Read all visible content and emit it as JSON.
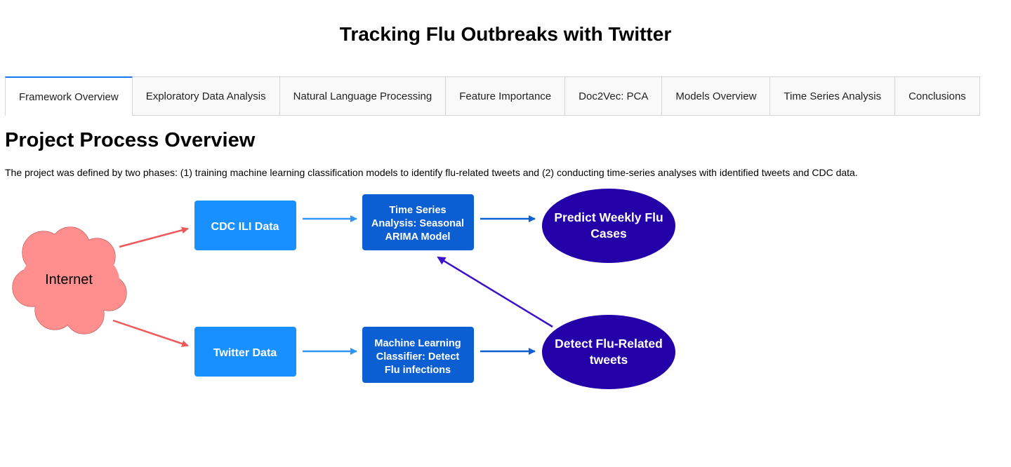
{
  "app": {
    "title": "Tracking Flu Outbreaks with Twitter"
  },
  "tabs": [
    {
      "label": "Framework Overview",
      "active": true
    },
    {
      "label": "Exploratory Data Analysis",
      "active": false
    },
    {
      "label": "Natural Language Processing",
      "active": false
    },
    {
      "label": "Feature Importance",
      "active": false
    },
    {
      "label": "Doc2Vec: PCA",
      "active": false
    },
    {
      "label": "Models Overview",
      "active": false
    },
    {
      "label": "Time Series Analysis",
      "active": false
    },
    {
      "label": "Conclusions",
      "active": false
    }
  ],
  "main": {
    "heading": "Project Process Overview",
    "intro": "The project was defined by two phases: (1) training machine learning classification models to identify flu-related tweets and (2) conducting time-series analyses with identified tweets and CDC data."
  },
  "diagram": {
    "nodes": {
      "internet": {
        "lines": [
          "Internet"
        ]
      },
      "cdc": {
        "lines": [
          "CDC ILI Data"
        ]
      },
      "twitter": {
        "lines": [
          "Twitter Data"
        ]
      },
      "timeseries": {
        "lines": [
          "Time Series",
          "Analysis: Seasonal",
          "ARIMA Model"
        ]
      },
      "classifier": {
        "lines": [
          "Machine Learning",
          "Classifier: Detect",
          "Flu infections"
        ]
      },
      "predict": {
        "lines": [
          "Predict Weekly Flu",
          "Cases"
        ]
      },
      "detect": {
        "lines": [
          "Detect Flu-Related",
          "tweets"
        ]
      }
    },
    "colors": {
      "accent": "#1975fa",
      "cloud_fill": "#ff8e8e",
      "cloud_stroke": "#c24f4f",
      "light_box": "#1890ff",
      "dark_box": "#0c5fd3",
      "ellipse": "#2400a8",
      "arrow_red": "#ee5a5a",
      "arrow_light": "#2f95f5",
      "arrow_blue": "#0c5fd3",
      "arrow_purple": "#3a10c8"
    }
  }
}
